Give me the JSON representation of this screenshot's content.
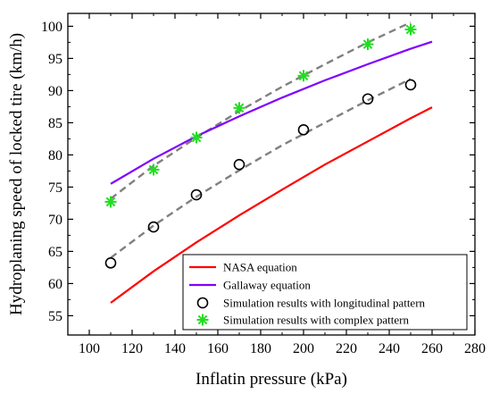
{
  "chart_data": {
    "type": "line",
    "title": "",
    "xlabel": "Inflatin pressure (kPa)",
    "ylabel": "Hydroplaning speed of locked tire (km/h)",
    "xlim": [
      90,
      280
    ],
    "ylim": [
      52,
      102
    ],
    "xticks": [
      100,
      120,
      140,
      160,
      180,
      200,
      220,
      240,
      260,
      280
    ],
    "yticks": [
      55,
      60,
      65,
      70,
      75,
      80,
      85,
      90,
      95,
      100
    ],
    "grid": false,
    "legend_position": "bottom-right",
    "colors": {
      "nasa": "#ff0000",
      "gallaway": "#7f00ff",
      "longitudinal": "#000000",
      "complex": "#22dd22",
      "fit": "#808080"
    },
    "series": [
      {
        "name": "NASA equation",
        "style": "line",
        "x": [
          110,
          130,
          150,
          170,
          190,
          210,
          230,
          250,
          260
        ],
        "y": [
          57.0,
          61.9,
          66.4,
          70.6,
          74.6,
          78.5,
          82.1,
          85.7,
          87.4
        ]
      },
      {
        "name": "Gallaway equation",
        "style": "line",
        "x": [
          110,
          130,
          150,
          170,
          190,
          210,
          230,
          250,
          260
        ],
        "y": [
          75.5,
          79.4,
          82.9,
          86.0,
          88.9,
          91.6,
          94.1,
          96.5,
          97.6
        ]
      },
      {
        "name": "Simulation results with longitudinal pattern",
        "style": "marker-circle",
        "x": [
          110,
          130,
          150,
          170,
          200,
          230,
          250
        ],
        "y": [
          63.2,
          68.8,
          73.8,
          78.5,
          83.9,
          88.7,
          90.9
        ]
      },
      {
        "name": "Simulation results with complex pattern",
        "style": "marker-star",
        "x": [
          110,
          130,
          150,
          170,
          200,
          230,
          250
        ],
        "y": [
          72.7,
          77.7,
          82.7,
          87.3,
          92.3,
          97.2,
          99.5
        ]
      }
    ],
    "fit_lines": [
      {
        "style": "dashed",
        "x": [
          110,
          130,
          150,
          170,
          190,
          210,
          230,
          250
        ],
        "y": [
          64.0,
          69.0,
          73.5,
          77.6,
          81.5,
          85.0,
          88.5,
          91.8
        ]
      },
      {
        "style": "dashed",
        "x": [
          110,
          130,
          150,
          170,
          190,
          210,
          230,
          250
        ],
        "y": [
          73.2,
          78.3,
          82.7,
          86.8,
          90.6,
          94.1,
          97.5,
          100.6
        ]
      }
    ]
  }
}
